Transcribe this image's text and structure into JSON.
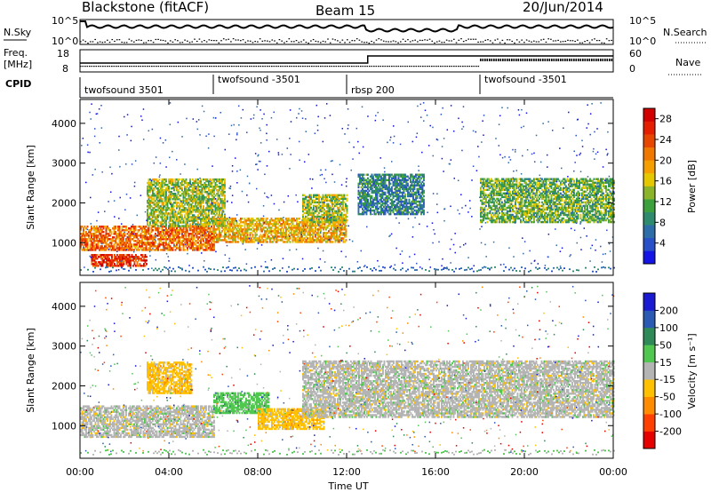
{
  "header": {
    "station": "Blackstone (fitACF)",
    "beam": "Beam 15",
    "date": "20/Jun/2014"
  },
  "aux_labels": {
    "nsky": "N.Sky",
    "nsearch": "N.Search",
    "freq_line1": "Freq.",
    "freq_line2": "[MHz]",
    "nave": "Nave",
    "cpid": "CPID"
  },
  "aux_ticks": {
    "noise_left": [
      "10^5",
      "10^0"
    ],
    "noise_right": [
      "10^5",
      "10^0"
    ],
    "freq_left": [
      "18",
      "8"
    ],
    "freq_right": [
      "60",
      "0"
    ]
  },
  "cpid_segments": [
    {
      "name": "twofsound 3501",
      "start": 0.0,
      "end": 6.0
    },
    {
      "name": "twofsound -3501",
      "start": 6.0,
      "end": 12.0
    },
    {
      "name": "rbsp 200",
      "start": 12.0,
      "end": 18.0
    },
    {
      "name": "twofsound -3501",
      "start": 18.0,
      "end": 24.0
    }
  ],
  "chart_data": [
    {
      "type": "heatmap",
      "xlabel": "Time UT",
      "ylabel": "Slant Range [km]",
      "xlim": [
        0,
        24
      ],
      "ylim": [
        180,
        4600
      ],
      "x_ticks": [
        "00:00",
        "04:00",
        "08:00",
        "12:00",
        "16:00",
        "20:00",
        "00:00"
      ],
      "y_ticks": [
        1000,
        2000,
        3000,
        4000
      ],
      "colorbar": {
        "label": "Power [dB]",
        "ticks": [
          4,
          8,
          12,
          16,
          20,
          24,
          28
        ],
        "range": [
          0,
          30
        ],
        "colors": [
          "#1414e6",
          "#2850c8",
          "#2e6ea8",
          "#2e8b6e",
          "#3ca03c",
          "#8cb42a",
          "#e6c800",
          "#f5a000",
          "#f07800",
          "#e64600",
          "#e61e00",
          "#d20000"
        ]
      },
      "echo_regions": [
        {
          "t0": 0.0,
          "t1": 6.0,
          "r0": 800,
          "r1": 1400,
          "value": 22
        },
        {
          "t0": 0.5,
          "t1": 3.0,
          "r0": 400,
          "r1": 700,
          "value": 26
        },
        {
          "t0": 3.0,
          "t1": 6.5,
          "r0": 1400,
          "r1": 2600,
          "value": 14
        },
        {
          "t0": 6.0,
          "t1": 12.0,
          "r0": 1000,
          "r1": 1600,
          "value": 18
        },
        {
          "t0": 10.0,
          "t1": 12.0,
          "r0": 1500,
          "r1": 2200,
          "value": 14
        },
        {
          "t0": 12.5,
          "t1": 15.5,
          "r0": 1700,
          "r1": 2700,
          "value": 8
        },
        {
          "t0": 18.0,
          "t1": 24.0,
          "r0": 1500,
          "r1": 2600,
          "value": 12
        }
      ]
    },
    {
      "type": "heatmap",
      "xlabel": "Time UT",
      "ylabel": "Slant Range [km]",
      "xlim": [
        0,
        24
      ],
      "ylim": [
        180,
        4600
      ],
      "x_ticks": [
        "00:00",
        "04:00",
        "08:00",
        "12:00",
        "16:00",
        "20:00",
        "00:00"
      ],
      "y_ticks": [
        1000,
        2000,
        3000,
        4000
      ],
      "colorbar": {
        "label": "Velocity [m s⁻¹]",
        "ticks": [
          "200",
          "100",
          "50",
          "15",
          "-15",
          "-50",
          "-100",
          "-200"
        ],
        "colors": [
          "#1a1ad2",
          "#2a5ab4",
          "#2e8b57",
          "#50c850",
          "#b4b4b4",
          "#ffc000",
          "#ff8c00",
          "#ff4000",
          "#e60000"
        ]
      },
      "echo_regions": [
        {
          "t0": 0.0,
          "t1": 6.0,
          "r0": 700,
          "r1": 1500,
          "value": "-15 to 15"
        },
        {
          "t0": 3.0,
          "t1": 5.0,
          "r0": 1800,
          "r1": 2600,
          "value": "-50"
        },
        {
          "t0": 6.0,
          "t1": 8.5,
          "r0": 1300,
          "r1": 1800,
          "value": "50"
        },
        {
          "t0": 8.0,
          "t1": 11.0,
          "r0": 900,
          "r1": 1400,
          "value": "-50"
        },
        {
          "t0": 10.0,
          "t1": 24.0,
          "r0": 1200,
          "r1": 2600,
          "value": "-15 to 15"
        }
      ]
    }
  ]
}
